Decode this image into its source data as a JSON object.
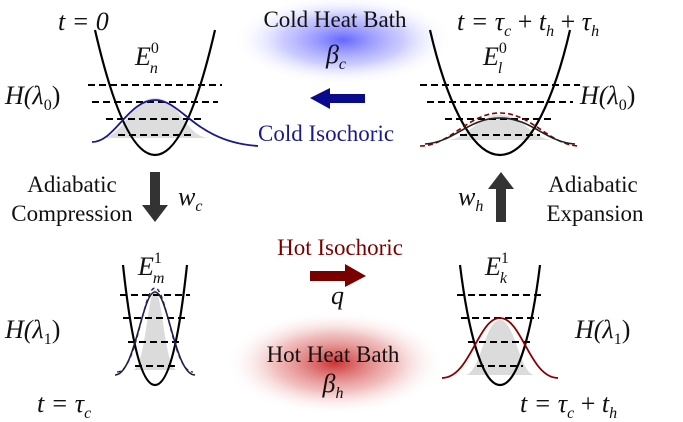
{
  "baths": {
    "cold": {
      "title": "Cold Heat Bath",
      "symbol": "β",
      "sub": "c",
      "color": "#3b3bff"
    },
    "hot": {
      "title": "Hot Heat Bath",
      "symbol": "β",
      "sub": "h",
      "color": "#b00000"
    }
  },
  "strokes": {
    "cold_isochoric": "Cold Isochoric",
    "hot_isochoric": "Hot Isochoric",
    "adiabatic_compression_1": "Adiabatic",
    "adiabatic_compression_2": "Compression",
    "adiabatic_expansion_1": "Adiabatic",
    "adiabatic_expansion_2": "Expansion",
    "wc_w": "w",
    "wc_sub": "c",
    "wh_w": "w",
    "wh_sub": "h",
    "q": "q"
  },
  "times": {
    "tl": "t = 0",
    "tr": "t = τ",
    "bl": "t = τ",
    "br": "t = τ"
  },
  "hamiltonians": {
    "H": "H(λ",
    "zero": "0",
    "one": "1",
    "close": ")"
  },
  "energies": {
    "tl": {
      "E": "E",
      "sup": "0",
      "sub": "n"
    },
    "tr": {
      "E": "E",
      "sup": "0",
      "sub": "l"
    },
    "bl": {
      "E": "E",
      "sup": "1",
      "sub": "m"
    },
    "br": {
      "E": "E",
      "sup": "1",
      "sub": "k"
    }
  },
  "colors": {
    "cold_arrow": "#0a0a8c",
    "hot_arrow": "#7a0000",
    "adiabatic_arrow": "#333333"
  }
}
